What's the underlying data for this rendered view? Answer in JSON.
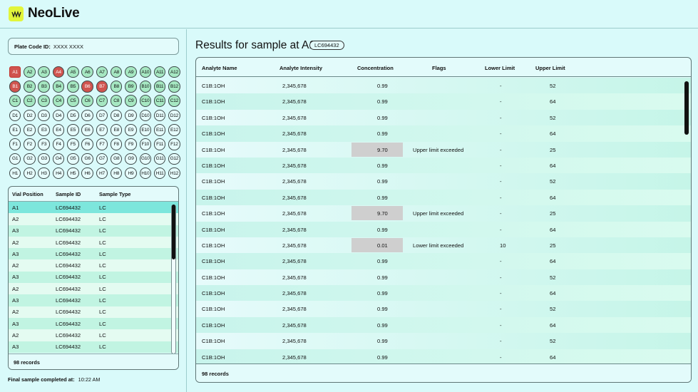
{
  "app": {
    "title": "NeoLive",
    "logo_icon": "waveform-logo-icon",
    "logo_color": "#e2f53a"
  },
  "plate": {
    "code_label": "Plate Code ID:",
    "code_value": "XXXX XXXX",
    "selected_well": "A1",
    "rows": [
      {
        "wells": [
          {
            "id": "A1",
            "state": "flag"
          },
          {
            "id": "A2",
            "state": "done"
          },
          {
            "id": "A3",
            "state": "done"
          },
          {
            "id": "A4",
            "state": "flag"
          },
          {
            "id": "A5",
            "state": "done"
          },
          {
            "id": "A6",
            "state": "done"
          },
          {
            "id": "A7",
            "state": "done"
          },
          {
            "id": "A8",
            "state": "done"
          },
          {
            "id": "A9",
            "state": "done"
          },
          {
            "id": "A10",
            "state": "done"
          },
          {
            "id": "A11",
            "state": "done"
          },
          {
            "id": "A12",
            "state": "done"
          }
        ]
      },
      {
        "wells": [
          {
            "id": "B1",
            "state": "flag"
          },
          {
            "id": "B2",
            "state": "done"
          },
          {
            "id": "B3",
            "state": "done"
          },
          {
            "id": "B4",
            "state": "done"
          },
          {
            "id": "B5",
            "state": "done"
          },
          {
            "id": "B6",
            "state": "flag"
          },
          {
            "id": "B7",
            "state": "flag"
          },
          {
            "id": "B8",
            "state": "done"
          },
          {
            "id": "B9",
            "state": "done"
          },
          {
            "id": "B10",
            "state": "done"
          },
          {
            "id": "B11",
            "state": "done"
          },
          {
            "id": "B12",
            "state": "done"
          }
        ]
      },
      {
        "wells": [
          {
            "id": "C1",
            "state": "done"
          },
          {
            "id": "C2",
            "state": "done"
          },
          {
            "id": "C3",
            "state": "done"
          },
          {
            "id": "C4",
            "state": "done"
          },
          {
            "id": "C5",
            "state": "done"
          },
          {
            "id": "C6",
            "state": "done"
          },
          {
            "id": "C7",
            "state": "done"
          },
          {
            "id": "C8",
            "state": "done"
          },
          {
            "id": "C9",
            "state": "done"
          },
          {
            "id": "C10",
            "state": "done"
          },
          {
            "id": "C11",
            "state": "done"
          },
          {
            "id": "C12",
            "state": "done"
          }
        ]
      },
      {
        "wells": [
          {
            "id": "D1",
            "state": "empty"
          },
          {
            "id": "D2",
            "state": "empty"
          },
          {
            "id": "D3",
            "state": "empty"
          },
          {
            "id": "D4",
            "state": "empty"
          },
          {
            "id": "D5",
            "state": "empty"
          },
          {
            "id": "D6",
            "state": "empty"
          },
          {
            "id": "D7",
            "state": "empty"
          },
          {
            "id": "D8",
            "state": "empty"
          },
          {
            "id": "D9",
            "state": "empty"
          },
          {
            "id": "D10",
            "state": "empty"
          },
          {
            "id": "D11",
            "state": "empty"
          },
          {
            "id": "D12",
            "state": "empty"
          }
        ]
      },
      {
        "wells": [
          {
            "id": "E1",
            "state": "empty"
          },
          {
            "id": "E2",
            "state": "empty"
          },
          {
            "id": "E3",
            "state": "empty"
          },
          {
            "id": "E4",
            "state": "empty"
          },
          {
            "id": "E5",
            "state": "empty"
          },
          {
            "id": "E6",
            "state": "empty"
          },
          {
            "id": "E7",
            "state": "empty"
          },
          {
            "id": "E8",
            "state": "empty"
          },
          {
            "id": "E9",
            "state": "empty"
          },
          {
            "id": "E10",
            "state": "empty"
          },
          {
            "id": "E11",
            "state": "empty"
          },
          {
            "id": "E12",
            "state": "empty"
          }
        ]
      },
      {
        "wells": [
          {
            "id": "F1",
            "state": "empty"
          },
          {
            "id": "F2",
            "state": "empty"
          },
          {
            "id": "F3",
            "state": "empty"
          },
          {
            "id": "F4",
            "state": "empty"
          },
          {
            "id": "F5",
            "state": "empty"
          },
          {
            "id": "F6",
            "state": "empty"
          },
          {
            "id": "F7",
            "state": "empty"
          },
          {
            "id": "F8",
            "state": "empty"
          },
          {
            "id": "F9",
            "state": "empty"
          },
          {
            "id": "F10",
            "state": "empty"
          },
          {
            "id": "F11",
            "state": "empty"
          },
          {
            "id": "F12",
            "state": "empty"
          }
        ]
      },
      {
        "wells": [
          {
            "id": "G1",
            "state": "empty"
          },
          {
            "id": "G2",
            "state": "empty"
          },
          {
            "id": "G3",
            "state": "empty"
          },
          {
            "id": "G4",
            "state": "empty"
          },
          {
            "id": "G5",
            "state": "empty"
          },
          {
            "id": "G6",
            "state": "empty"
          },
          {
            "id": "G7",
            "state": "empty"
          },
          {
            "id": "G8",
            "state": "empty"
          },
          {
            "id": "G9",
            "state": "empty"
          },
          {
            "id": "G10",
            "state": "empty"
          },
          {
            "id": "G11",
            "state": "empty"
          },
          {
            "id": "G12",
            "state": "empty"
          }
        ]
      },
      {
        "wells": [
          {
            "id": "H1",
            "state": "empty"
          },
          {
            "id": "H2",
            "state": "empty"
          },
          {
            "id": "H3",
            "state": "empty"
          },
          {
            "id": "H4",
            "state": "empty"
          },
          {
            "id": "H5",
            "state": "empty"
          },
          {
            "id": "H6",
            "state": "empty"
          },
          {
            "id": "H7",
            "state": "empty"
          },
          {
            "id": "H8",
            "state": "empty"
          },
          {
            "id": "H9",
            "state": "empty"
          },
          {
            "id": "H10",
            "state": "empty"
          },
          {
            "id": "H11",
            "state": "empty"
          },
          {
            "id": "H12",
            "state": "empty"
          }
        ]
      }
    ],
    "colors": {
      "done": "#a6e8c2",
      "flag": "#d0544f",
      "empty": "#e6fcfc"
    }
  },
  "vials": {
    "headers": [
      "Vial Position",
      "Sample ID",
      "Sample Type"
    ],
    "rows": [
      {
        "pos": "A1",
        "id": "LC694432",
        "type": "LC",
        "active": true
      },
      {
        "pos": "A2",
        "id": "LC694432",
        "type": "LC"
      },
      {
        "pos": "A3",
        "id": "LC694432",
        "type": "LC"
      },
      {
        "pos": "A2",
        "id": "LC694432",
        "type": "LC"
      },
      {
        "pos": "A3",
        "id": "LC694432",
        "type": "LC"
      },
      {
        "pos": "A2",
        "id": "LC694432",
        "type": "LC"
      },
      {
        "pos": "A3",
        "id": "LC694432",
        "type": "LC"
      },
      {
        "pos": "A2",
        "id": "LC694432",
        "type": "LC"
      },
      {
        "pos": "A3",
        "id": "LC694432",
        "type": "LC"
      },
      {
        "pos": "A2",
        "id": "LC694432",
        "type": "LC"
      },
      {
        "pos": "A3",
        "id": "LC694432",
        "type": "LC"
      },
      {
        "pos": "A2",
        "id": "LC694432",
        "type": "LC"
      },
      {
        "pos": "A3",
        "id": "LC694432",
        "type": "LC"
      }
    ],
    "footer": "98 records"
  },
  "final_completed": {
    "label": "Final sample completed at:",
    "value": "10:22 AM"
  },
  "results": {
    "title": "Results for sample at A1",
    "sample_badge": "LC694432",
    "headers": [
      "Analyte Name",
      "Analyte Intensity",
      "Concentration",
      "Flags",
      "Lower Limit",
      "Upper Limit"
    ],
    "rows": [
      {
        "name": "C1B:1OH",
        "intensity": "2,345,678",
        "conc": "0.99",
        "flag": "",
        "lower": "-",
        "upper": "52"
      },
      {
        "name": "C1B:1OH",
        "intensity": "2,345,678",
        "conc": "0.99",
        "flag": "",
        "lower": "-",
        "upper": "64"
      },
      {
        "name": "C1B:1OH",
        "intensity": "2,345,678",
        "conc": "0.99",
        "flag": "",
        "lower": "-",
        "upper": "52"
      },
      {
        "name": "C1B:1OH",
        "intensity": "2,345,678",
        "conc": "0.99",
        "flag": "",
        "lower": "-",
        "upper": "64"
      },
      {
        "name": "C1B:1OH",
        "intensity": "2,345,678",
        "conc": "9.70",
        "flag": "Upper limit exceeded",
        "lower": "-",
        "upper": "25",
        "flagged": true
      },
      {
        "name": "C1B:1OH",
        "intensity": "2,345,678",
        "conc": "0.99",
        "flag": "",
        "lower": "-",
        "upper": "64"
      },
      {
        "name": "C1B:1OH",
        "intensity": "2,345,678",
        "conc": "0.99",
        "flag": "",
        "lower": "-",
        "upper": "52"
      },
      {
        "name": "C1B:1OH",
        "intensity": "2,345,678",
        "conc": "0.99",
        "flag": "",
        "lower": "-",
        "upper": "64"
      },
      {
        "name": "C1B:1OH",
        "intensity": "2,345,678",
        "conc": "9.70",
        "flag": "Upper limit exceeded",
        "lower": "-",
        "upper": "25",
        "flagged": true
      },
      {
        "name": "C1B:1OH",
        "intensity": "2,345,678",
        "conc": "0.99",
        "flag": "",
        "lower": "-",
        "upper": "64"
      },
      {
        "name": "C1B:1OH",
        "intensity": "2,345,678",
        "conc": "0.01",
        "flag": "Lower limit exceeded",
        "lower": "10",
        "upper": "25",
        "flagged": true
      },
      {
        "name": "C1B:1OH",
        "intensity": "2,345,678",
        "conc": "0.99",
        "flag": "",
        "lower": "-",
        "upper": "64"
      },
      {
        "name": "C1B:1OH",
        "intensity": "2,345,678",
        "conc": "0.99",
        "flag": "",
        "lower": "-",
        "upper": "52"
      },
      {
        "name": "C1B:1OH",
        "intensity": "2,345,678",
        "conc": "0.99",
        "flag": "",
        "lower": "-",
        "upper": "64"
      },
      {
        "name": "C1B:1OH",
        "intensity": "2,345,678",
        "conc": "0.99",
        "flag": "",
        "lower": "-",
        "upper": "52"
      },
      {
        "name": "C1B:1OH",
        "intensity": "2,345,678",
        "conc": "0.99",
        "flag": "",
        "lower": "-",
        "upper": "64"
      },
      {
        "name": "C1B:1OH",
        "intensity": "2,345,678",
        "conc": "0.99",
        "flag": "",
        "lower": "-",
        "upper": "52"
      },
      {
        "name": "C1B:1OH",
        "intensity": "2,345,678",
        "conc": "0.99",
        "flag": "",
        "lower": "-",
        "upper": "64"
      }
    ],
    "footer": "98 records",
    "flag_cell_color": "#cfcfcf"
  }
}
